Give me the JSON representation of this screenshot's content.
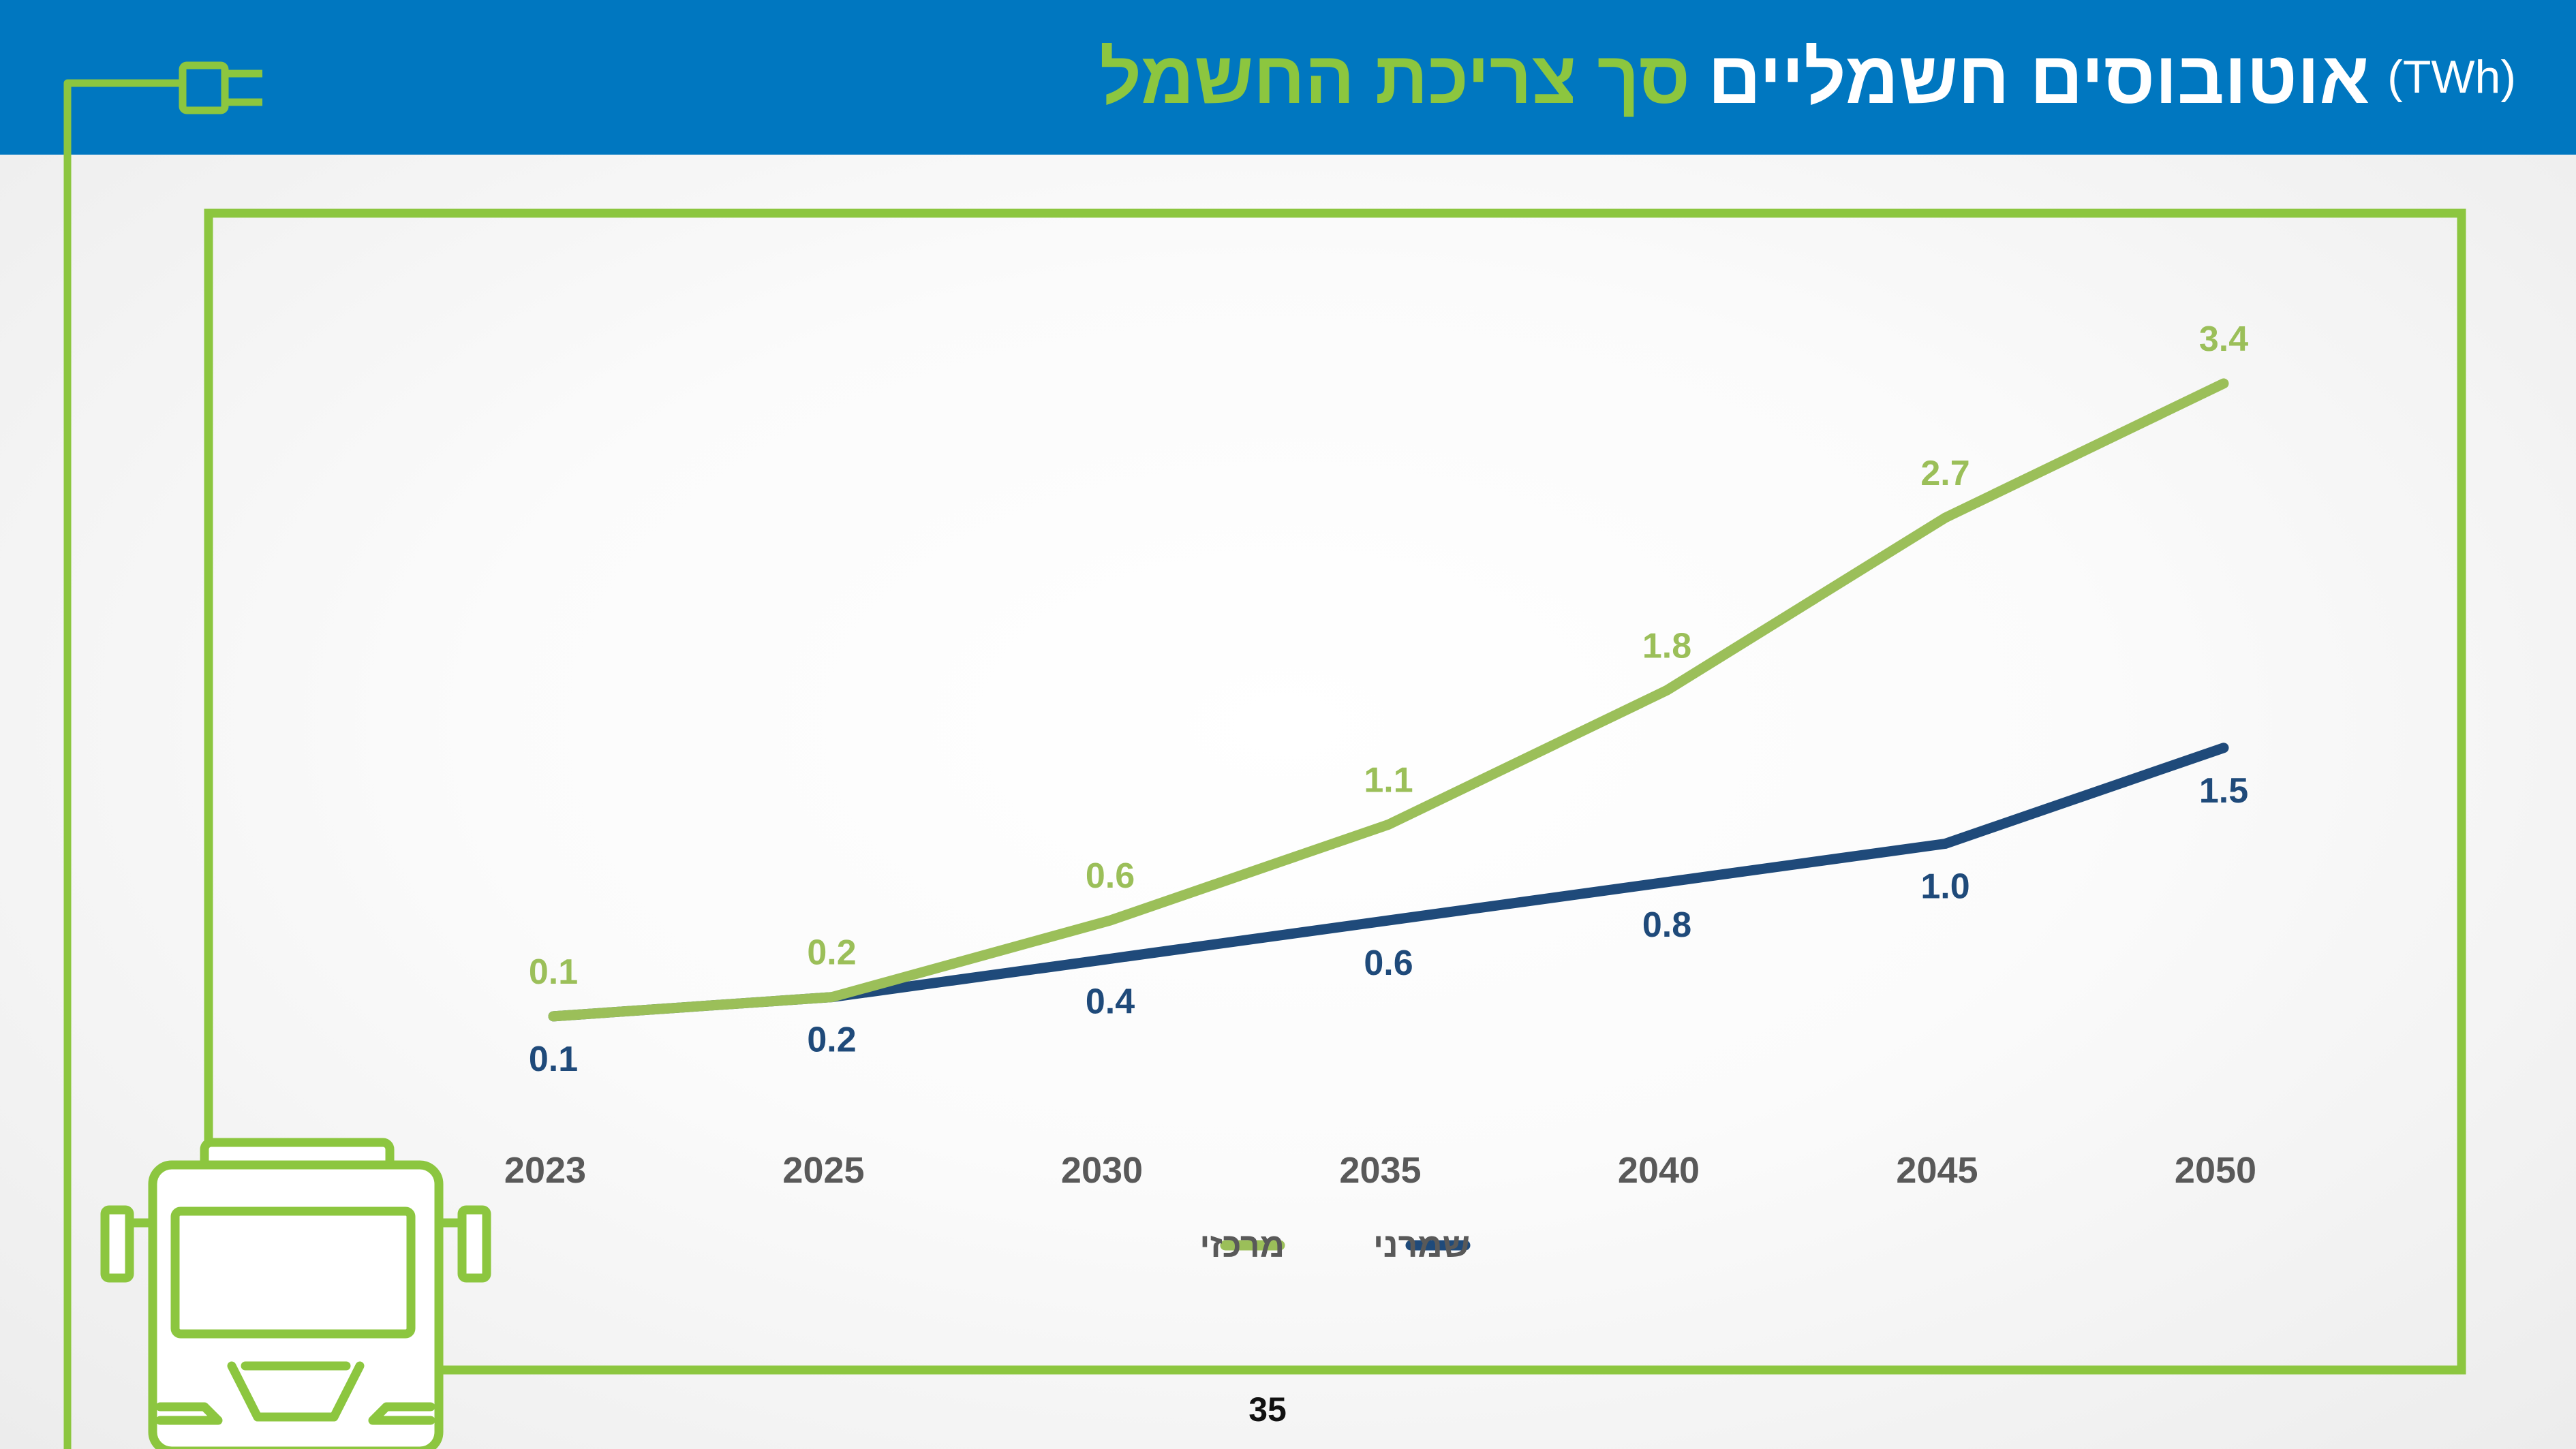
{
  "slide": {
    "title_green": "סך צריכת החשמל",
    "title_white": "אוטובוסים חשמליים",
    "title_unit": "(TWh)",
    "page_number": "35"
  },
  "colors": {
    "header_bg": "#0077c0",
    "accent_green": "#8cc63f",
    "series_central": "#9bbf59",
    "series_conservative": "#1f4a7a",
    "axis_label": "#595959"
  },
  "icons": [
    "plug-icon",
    "bus-icon"
  ],
  "chart_data": {
    "type": "line",
    "title": "",
    "xlabel": "",
    "ylabel": "",
    "categories": [
      "2023",
      "2025",
      "2030",
      "2035",
      "2040",
      "2045",
      "2050"
    ],
    "ylim": [
      0,
      3.4
    ],
    "grid": false,
    "legend": "bottom",
    "series": [
      {
        "name": "מרכזי",
        "color": "#9bbf59",
        "values": [
          0.1,
          0.2,
          0.6,
          1.1,
          1.8,
          2.7,
          3.4
        ],
        "labels": [
          "0.1",
          "0.2",
          "0.6",
          "1.1",
          "1.8",
          "2.7",
          "3.4"
        ]
      },
      {
        "name": "שמרני",
        "color": "#1f4a7a",
        "values": [
          0.1,
          0.2,
          0.4,
          0.6,
          0.8,
          1.0,
          1.5
        ],
        "labels": [
          "0.1",
          "0.2",
          "0.4",
          "0.6",
          "0.8",
          "1.0",
          "1.5"
        ]
      }
    ]
  }
}
